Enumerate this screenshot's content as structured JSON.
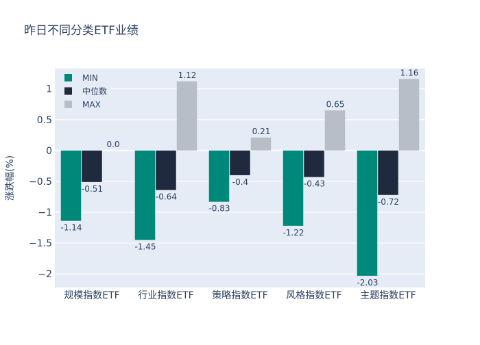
{
  "chart_data": {
    "type": "bar",
    "title": "昨日不同分类ETF业绩",
    "xlabel": "",
    "ylabel": "涨跌幅(%)",
    "ylim": [
      -2.22,
      1.33
    ],
    "yticks": [
      1,
      0.5,
      0,
      -0.5,
      -1,
      -1.5,
      -2
    ],
    "ytick_labels": [
      "1",
      "0.5",
      "0",
      "−0.5",
      "−1",
      "−1.5",
      "−2"
    ],
    "categories": [
      "规模指数ETF",
      "行业指数ETF",
      "策略指数ETF",
      "风格指数ETF",
      "主题指数ETF"
    ],
    "series": [
      {
        "name": "MIN",
        "color": "#00897b",
        "values": [
          -1.14,
          -1.45,
          -0.83,
          -1.22,
          -2.03
        ],
        "labels": [
          "-1.14",
          "-1.45",
          "-0.83",
          "-1.22",
          "-2.03"
        ]
      },
      {
        "name": "中位数",
        "color": "#1f2a3f",
        "values": [
          -0.51,
          -0.64,
          -0.4,
          -0.43,
          -0.72
        ],
        "labels": [
          "-0.51",
          "-0.64",
          "-0.4",
          "-0.43",
          "-0.72"
        ]
      },
      {
        "name": "MAX",
        "color": "#b8bec7",
        "values": [
          0.0,
          1.12,
          0.21,
          0.65,
          1.16
        ],
        "labels": [
          "0.0",
          "1.12",
          "0.21",
          "0.65",
          "1.16"
        ]
      }
    ],
    "grid": true,
    "legend": "top-left"
  }
}
